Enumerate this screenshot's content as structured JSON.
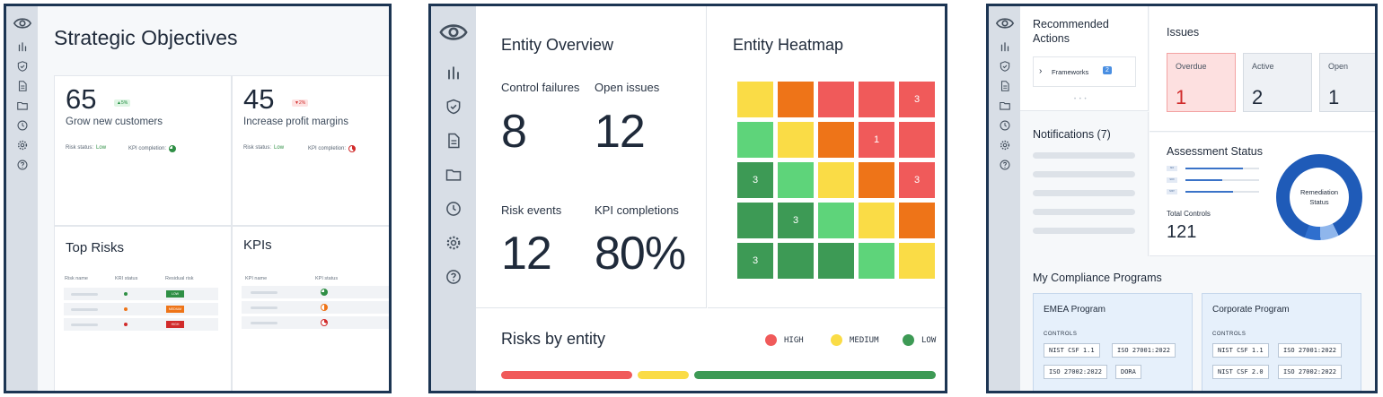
{
  "colors": {
    "frame": "#1c3553",
    "rail": "#d8dee6",
    "high": "#f05a5a",
    "medium": "#fadc46",
    "low": "#3d9a55",
    "orange": "#ee7418",
    "light_green": "#5ed47a",
    "accent_blue": "#1f5bb8"
  },
  "rail_icons": [
    "eye-logo-icon",
    "bar-chart-icon",
    "shield-check-icon",
    "document-icon",
    "folder-icon",
    "clock-icon",
    "gear-icon",
    "help-circle-icon"
  ],
  "strategic": {
    "title": "Strategic Objectives",
    "objectives": [
      {
        "value": "65",
        "change": "▲5%",
        "direction": "up",
        "label": "Grow new customers",
        "risk_label": "Risk status:",
        "risk_value": "Low",
        "kpi_label": "KPI completion:",
        "kpi_fraction": 0.75
      },
      {
        "value": "45",
        "change": "▼2%",
        "direction": "down",
        "label": "Increase profit margins",
        "risk_label": "Risk status:",
        "risk_value": "Low",
        "kpi_label": "KPI completion:",
        "kpi_fraction": 0.4
      }
    ],
    "top_risks": {
      "title": "Top Risks",
      "columns": [
        "Risk name",
        "KRI status",
        "Residual risk"
      ],
      "rows": [
        {
          "kri": "#2f8f45",
          "residual": "LOW",
          "residual_color": "#2f8f45"
        },
        {
          "kri": "#ee7418",
          "residual": "MEDIUM",
          "residual_color": "#ee7418"
        },
        {
          "kri": "#d12b2b",
          "residual": "HIGH",
          "residual_color": "#d12b2b"
        }
      ]
    },
    "kpis": {
      "title": "KPIs",
      "columns": [
        "KPI name",
        "KPI status"
      ],
      "rows": [
        {
          "fraction": 0.75,
          "color": "#2f8f45"
        },
        {
          "fraction": 0.5,
          "color": "#ee7418"
        },
        {
          "fraction": 0.3,
          "color": "#d12b2b"
        }
      ]
    }
  },
  "entity": {
    "title": "Entity Overview",
    "metrics": [
      {
        "label": "Control failures",
        "value": "8"
      },
      {
        "label": "Open issues",
        "value": "12"
      },
      {
        "label": "Risk events",
        "value": "12"
      },
      {
        "label": "KPI completions",
        "value": "80%"
      }
    ],
    "heatmap": {
      "title": "Entity Heatmap",
      "rows": [
        [
          {
            "c": "yellow",
            "n": ""
          },
          {
            "c": "orange",
            "n": ""
          },
          {
            "c": "red",
            "n": ""
          },
          {
            "c": "red",
            "n": ""
          },
          {
            "c": "red",
            "n": "3"
          }
        ],
        [
          {
            "c": "lightgreen",
            "n": ""
          },
          {
            "c": "yellow",
            "n": ""
          },
          {
            "c": "orange",
            "n": ""
          },
          {
            "c": "red",
            "n": "1"
          },
          {
            "c": "red",
            "n": ""
          }
        ],
        [
          {
            "c": "green",
            "n": "3"
          },
          {
            "c": "lightgreen",
            "n": ""
          },
          {
            "c": "yellow",
            "n": ""
          },
          {
            "c": "orange",
            "n": ""
          },
          {
            "c": "red",
            "n": "3"
          }
        ],
        [
          {
            "c": "green",
            "n": ""
          },
          {
            "c": "green",
            "n": "3"
          },
          {
            "c": "lightgreen",
            "n": ""
          },
          {
            "c": "yellow",
            "n": ""
          },
          {
            "c": "orange",
            "n": ""
          }
        ],
        [
          {
            "c": "green",
            "n": "3"
          },
          {
            "c": "green",
            "n": ""
          },
          {
            "c": "green",
            "n": ""
          },
          {
            "c": "lightgreen",
            "n": ""
          },
          {
            "c": "yellow",
            "n": ""
          }
        ]
      ]
    },
    "risks_by_entity": {
      "title": "Risks by entity",
      "legend": [
        {
          "label": "HIGH",
          "color": "#f05a5a"
        },
        {
          "label": "MEDIUM",
          "color": "#fadc46"
        },
        {
          "label": "LOW",
          "color": "#3d9a55"
        }
      ],
      "distribution": [
        {
          "level": "HIGH",
          "share": 0.31
        },
        {
          "level": "MEDIUM",
          "share": 0.12
        },
        {
          "level": "LOW",
          "share": 0.57
        }
      ]
    }
  },
  "compliance": {
    "recommended": {
      "title": "Recommended Actions",
      "item_label": "Frameworks",
      "item_count": "2",
      "pager": "• • •"
    },
    "notifications": {
      "title": "Notifications (7)"
    },
    "issues": {
      "title": "Issues",
      "cards": [
        {
          "label": "Overdue",
          "value": "1"
        },
        {
          "label": "Active",
          "value": "2"
        },
        {
          "label": "Open",
          "value": "1"
        }
      ]
    },
    "assessment": {
      "title": "Assessment Status",
      "rows": [
        {
          "tag": "ISO",
          "fraction": 0.78
        },
        {
          "tag": "SOX",
          "fraction": 0.5
        },
        {
          "tag": "NIST",
          "fraction": 0.65
        }
      ],
      "total_label": "Total Controls",
      "total_value": "121",
      "donut_label_1": "Remediation",
      "donut_label_2": "Status",
      "donut_segments": [
        {
          "share": 0.87,
          "color": "#1f5bb8"
        },
        {
          "share": 0.07,
          "color": "#8fb6ec"
        },
        {
          "share": 0.06,
          "color": "#2f6fce"
        }
      ]
    },
    "programs": {
      "title": "My Compliance Programs",
      "list": [
        {
          "name": "EMEA Program",
          "controls_label": "CONTROLS",
          "chips": [
            "NIST CSF 1.1",
            "ISO 27001:2022",
            "ISO 27002:2022",
            "DORA"
          ]
        },
        {
          "name": "Corporate Program",
          "controls_label": "CONTROLS",
          "chips": [
            "NIST CSF 1.1",
            "ISO 27001:2022",
            "NIST CSF 2.0",
            "ISO 27002:2022"
          ]
        }
      ]
    }
  }
}
